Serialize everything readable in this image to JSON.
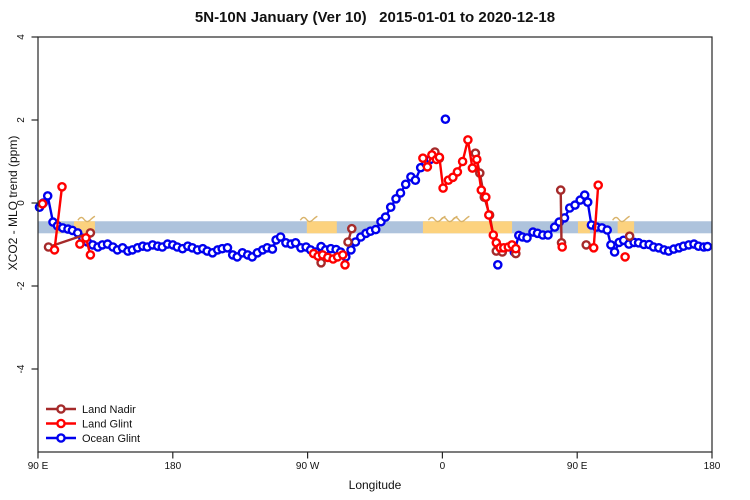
{
  "chart_data": {
    "type": "scatter",
    "title": "5N-10N January (Ver 10)   2015-01-01 to 2020-12-18",
    "xlabel": "Longitude",
    "ylabel": "XCO2 - MLO trend (ppm)",
    "x_axis": {
      "note": "longitude axis wraps eastward: 90E -> 180 -> 90W -> 0 -> 90E -> 180, stored as axis degrees 90..540",
      "range_deg": [
        90,
        540
      ],
      "ticks_deg": [
        90,
        180,
        270,
        360,
        450,
        540
      ],
      "tick_labels": [
        "90 E",
        "180",
        "90 W",
        "0",
        "90 E",
        "180"
      ]
    },
    "y_axis": {
      "ticks": [
        4,
        2,
        0,
        -2,
        -4
      ],
      "tick_labels": [
        "4",
        "2",
        "0",
        "-2",
        "-4"
      ],
      "range": [
        -6.0,
        4.0
      ],
      "grid": false
    },
    "reference_band": {
      "y_from": -0.73,
      "y_to": -0.44,
      "ocean_color": "#AEC3DC",
      "land_color": "#FCD27E",
      "coast_color": "#D9B36A",
      "land_segments_deg": [
        [
          102.5,
          105.5
        ],
        [
          114,
          128
        ],
        [
          269.5,
          289.5
        ],
        [
          347,
          406.5
        ],
        [
          450.5,
          458.5
        ],
        [
          477,
          488
        ]
      ],
      "coast_marks_deg": [
        122,
        270.5,
        356,
        364,
        372,
        479
      ]
    },
    "legend_position": "bottom-left",
    "series": [
      {
        "name": "Land Nadir",
        "color": "#A52A2A",
        "points": [
          [
            97,
            -1.06
          ],
          [
            125,
            -0.72
          ],
          null,
          [
            279,
            -1.44
          ],
          null,
          [
            297,
            -0.94
          ],
          [
            299.5,
            -0.62
          ],
          null,
          [
            355,
            1.23
          ],
          [
            358,
            1.08
          ],
          null,
          [
            382,
            1.2
          ],
          [
            385,
            0.72
          ],
          [
            388,
            0.14
          ],
          [
            391.5,
            -0.29
          ],
          [
            396,
            -1.16
          ],
          [
            400,
            -1.18
          ],
          null,
          [
            409,
            -1.22
          ],
          null,
          [
            439,
            0.31
          ],
          [
            439.5,
            -0.96
          ],
          null,
          [
            456,
            -1.01
          ],
          null,
          [
            485,
            -0.8
          ]
        ]
      },
      {
        "name": "Land Glint",
        "color": "#FF0000",
        "points": [
          [
            93,
            -0.02
          ],
          null,
          [
            101,
            -1.13
          ],
          [
            106,
            0.39
          ],
          null,
          [
            118,
            -0.99
          ],
          [
            122,
            -0.84
          ],
          [
            125,
            -1.25
          ],
          null,
          [
            274,
            -1.22
          ],
          [
            277,
            -1.28
          ],
          [
            280,
            -1.25
          ],
          [
            283.5,
            -1.31
          ],
          [
            287,
            -1.35
          ],
          [
            290,
            -1.3
          ],
          [
            293.5,
            -1.25
          ],
          null,
          [
            295,
            -1.49
          ],
          null,
          [
            347,
            1.08
          ],
          [
            350,
            0.87
          ],
          [
            353,
            1.16
          ],
          [
            356,
            1.05
          ],
          [
            358,
            1.1
          ],
          [
            360.5,
            0.36
          ],
          [
            364,
            0.55
          ],
          [
            367,
            0.62
          ],
          [
            370,
            0.75
          ],
          [
            373.5,
            1.0
          ],
          [
            377,
            1.52
          ],
          [
            380,
            0.84
          ],
          [
            383,
            1.05
          ],
          [
            386,
            0.31
          ],
          [
            389,
            0.14
          ],
          [
            391,
            -0.29
          ],
          [
            394,
            -0.77
          ],
          [
            396,
            -0.96
          ],
          [
            398.5,
            -1.08
          ],
          [
            401,
            -1.08
          ],
          [
            404,
            -1.06
          ],
          [
            406.5,
            -1.01
          ],
          [
            409,
            -1.1
          ],
          null,
          [
            440,
            -1.06
          ],
          null,
          [
            461,
            -1.08
          ],
          [
            464,
            0.43
          ],
          null,
          [
            482,
            -1.3
          ]
        ]
      },
      {
        "name": "Ocean Glint",
        "color": "#0000EE",
        "points": [
          [
            91,
            -0.1
          ],
          [
            93.5,
            0.0
          ],
          [
            96.5,
            0.17
          ],
          [
            100,
            -0.46
          ],
          [
            103,
            -0.55
          ],
          [
            106.5,
            -0.6
          ],
          [
            110,
            -0.63
          ],
          [
            113,
            -0.66
          ],
          [
            116.5,
            -0.72
          ],
          [
            120,
            -0.85
          ],
          [
            123,
            -0.94
          ],
          [
            126.5,
            -1.01
          ],
          [
            130,
            -1.06
          ],
          [
            133,
            -1.01
          ],
          [
            136.5,
            -0.99
          ],
          [
            140,
            -1.06
          ],
          [
            143,
            -1.13
          ],
          [
            146.5,
            -1.08
          ],
          [
            150,
            -1.16
          ],
          [
            153,
            -1.13
          ],
          [
            156.5,
            -1.08
          ],
          [
            160,
            -1.04
          ],
          [
            163,
            -1.06
          ],
          [
            166.5,
            -1.01
          ],
          [
            170,
            -1.04
          ],
          [
            173,
            -1.06
          ],
          [
            176.5,
            -0.99
          ],
          [
            180,
            -1.01
          ],
          [
            183,
            -1.06
          ],
          [
            186.5,
            -1.1
          ],
          [
            190,
            -1.04
          ],
          [
            193,
            -1.08
          ],
          [
            196.5,
            -1.13
          ],
          [
            200,
            -1.1
          ],
          [
            203,
            -1.16
          ],
          [
            206.5,
            -1.2
          ],
          [
            210,
            -1.13
          ],
          [
            213,
            -1.1
          ],
          [
            216.5,
            -1.08
          ],
          [
            220,
            -1.25
          ],
          [
            223,
            -1.3
          ],
          [
            226.5,
            -1.2
          ],
          [
            230,
            -1.25
          ],
          [
            233,
            -1.3
          ],
          [
            236.5,
            -1.2
          ],
          [
            240,
            -1.13
          ],
          [
            243,
            -1.08
          ],
          [
            246.5,
            -1.11
          ],
          [
            249,
            -0.89
          ],
          [
            252,
            -0.82
          ],
          [
            255.5,
            -0.96
          ],
          [
            259,
            -0.99
          ],
          [
            262,
            -0.96
          ],
          [
            265.5,
            -1.08
          ],
          [
            269,
            -1.06
          ],
          [
            272,
            -1.13
          ],
          [
            275.5,
            -1.18
          ],
          [
            279,
            -1.05
          ],
          [
            282,
            -1.13
          ],
          [
            285.5,
            -1.1
          ],
          [
            289,
            -1.12
          ],
          [
            292,
            -1.18
          ],
          [
            295.5,
            -1.3
          ],
          [
            299,
            -1.13
          ],
          [
            302,
            -0.94
          ],
          [
            305.5,
            -0.82
          ],
          [
            309,
            -0.73
          ],
          [
            312,
            -0.68
          ],
          [
            315.5,
            -0.64
          ],
          [
            319,
            -0.45
          ],
          [
            322,
            -0.34
          ],
          [
            325.5,
            -0.1
          ],
          [
            329,
            0.1
          ],
          [
            332,
            0.24
          ],
          [
            335.5,
            0.45
          ],
          [
            339,
            0.63
          ],
          [
            342,
            0.55
          ],
          [
            345.5,
            0.85
          ],
          [
            349,
            0.95
          ],
          [
            352,
            1.05
          ],
          null,
          [
            362,
            2.02
          ],
          null,
          [
            397,
            -1.49
          ],
          null,
          [
            408,
            -1.18
          ],
          [
            411,
            -0.78
          ],
          [
            413.5,
            -0.82
          ],
          [
            416.5,
            -0.84
          ],
          [
            420.5,
            -0.7
          ],
          [
            423.5,
            -0.73
          ],
          [
            427,
            -0.77
          ],
          [
            430.5,
            -0.77
          ],
          [
            435,
            -0.58
          ],
          [
            438,
            -0.46
          ],
          [
            441.5,
            -0.36
          ],
          [
            445,
            -0.12
          ],
          [
            448.5,
            -0.05
          ],
          [
            452,
            0.07
          ],
          [
            455,
            0.19
          ],
          [
            457,
            0.02
          ],
          [
            459.5,
            -0.53
          ],
          [
            463,
            -0.58
          ],
          [
            466.5,
            -0.6
          ],
          [
            470,
            -0.65
          ],
          [
            472.5,
            -1.01
          ],
          [
            475,
            -1.18
          ],
          [
            478,
            -0.95
          ],
          [
            481,
            -0.9
          ],
          [
            484.5,
            -0.99
          ],
          [
            488,
            -0.95
          ],
          [
            491,
            -0.96
          ],
          [
            494.5,
            -1.0
          ],
          [
            498,
            -1.0
          ],
          [
            501,
            -1.06
          ],
          [
            504.5,
            -1.08
          ],
          [
            508,
            -1.13
          ],
          [
            511,
            -1.16
          ],
          [
            514.5,
            -1.11
          ],
          [
            518,
            -1.08
          ],
          [
            521,
            -1.04
          ],
          [
            524.5,
            -1.01
          ],
          [
            528,
            -0.99
          ],
          [
            531,
            -1.04
          ],
          [
            534.5,
            -1.06
          ],
          [
            537,
            -1.05
          ]
        ]
      }
    ]
  }
}
